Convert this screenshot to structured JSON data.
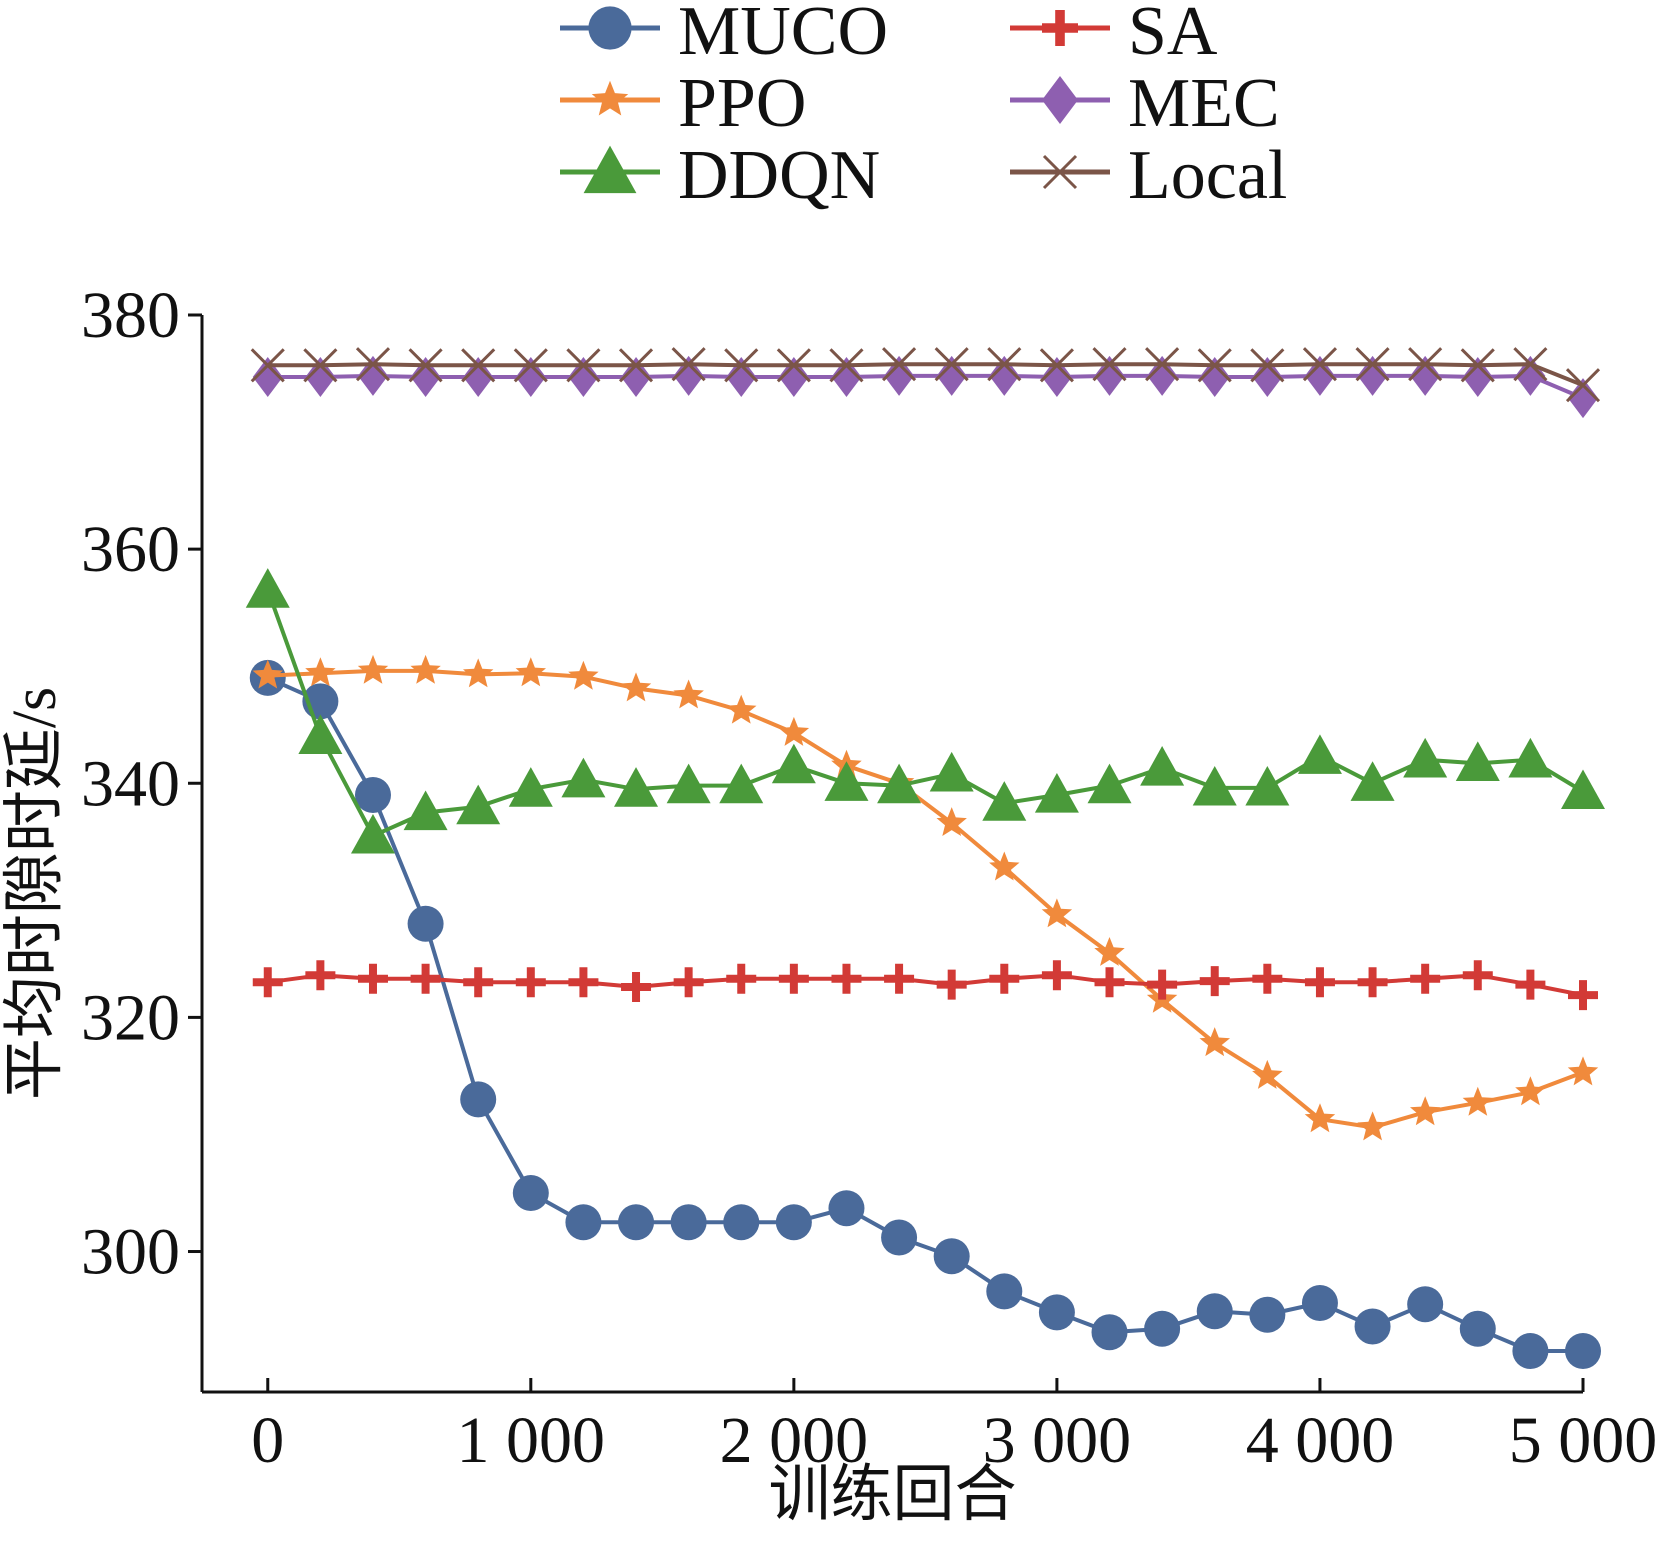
{
  "chart_data": {
    "type": "line",
    "title": "",
    "xlabel": "训练回合",
    "ylabel": "平均时隙时延/s",
    "xlim": [
      -250,
      5000
    ],
    "ylim": [
      288,
      380
    ],
    "x_ticks": [
      0,
      1000,
      2000,
      3000,
      4000,
      5000
    ],
    "x_tick_labels": [
      "0",
      "1 000",
      "2 000",
      "3 000",
      "4 000",
      "5 000"
    ],
    "y_ticks": [
      300,
      320,
      340,
      360,
      380
    ],
    "y_tick_labels": [
      "300",
      "320",
      "340",
      "360",
      "380"
    ],
    "grid": false,
    "legend_position": "top",
    "x": [
      0,
      200,
      400,
      600,
      800,
      1000,
      1200,
      1400,
      1600,
      1800,
      2000,
      2200,
      2400,
      2600,
      2800,
      3000,
      3200,
      3400,
      3600,
      3800,
      4000,
      4200,
      4400,
      4600,
      4800,
      5000
    ],
    "series": [
      {
        "name": "MUCO",
        "color": "#4a6a9a",
        "marker": "circle",
        "values": [
          349,
          347,
          339,
          328,
          313,
          305,
          302.5,
          302.5,
          302.5,
          302.5,
          302.5,
          303.7,
          301.2,
          299.6,
          296.6,
          294.8,
          293.1,
          293.4,
          294.9,
          294.6,
          295.6,
          293.6,
          295.5,
          293.4,
          291.5,
          291.5
        ]
      },
      {
        "name": "PPO",
        "color": "#f08a3c",
        "marker": "star",
        "values": [
          349.2,
          349.4,
          349.6,
          349.6,
          349.3,
          349.4,
          349.1,
          348.1,
          347.5,
          346.2,
          344.3,
          341.5,
          340.0,
          336.6,
          332.8,
          328.8,
          325.5,
          321.5,
          317.8,
          315.0,
          311.3,
          310.6,
          311.9,
          312.7,
          313.6,
          315.3
        ]
      },
      {
        "name": "DDQN",
        "color": "#4a9a3a",
        "marker": "triangle",
        "values": [
          356.5,
          344,
          335.5,
          337.5,
          338,
          339.5,
          340.3,
          339.5,
          339.8,
          339.8,
          341.5,
          340.0,
          339.8,
          340.8,
          338.3,
          339.0,
          339.8,
          341.3,
          339.6,
          339.6,
          342.3,
          340.0,
          342.0,
          341.7,
          342.0,
          339.3
        ]
      },
      {
        "name": "SA",
        "color": "#d23a36",
        "marker": "plus",
        "values": [
          323,
          323.6,
          323.3,
          323.3,
          323,
          323,
          323,
          322.6,
          323,
          323.3,
          323.3,
          323.3,
          323.3,
          322.8,
          323.3,
          323.6,
          323.0,
          322.8,
          323.1,
          323.3,
          323.0,
          323.0,
          323.3,
          323.6,
          322.8,
          321.9
        ]
      },
      {
        "name": "MEC",
        "color": "#8e5fb0",
        "marker": "diamond",
        "values": [
          374.7,
          374.7,
          374.8,
          374.7,
          374.7,
          374.7,
          374.7,
          374.7,
          374.8,
          374.7,
          374.7,
          374.7,
          374.8,
          374.8,
          374.8,
          374.7,
          374.8,
          374.8,
          374.7,
          374.7,
          374.8,
          374.8,
          374.8,
          374.7,
          374.8,
          372.9
        ]
      },
      {
        "name": "Local",
        "color": "#7b5548",
        "marker": "x",
        "values": [
          375.7,
          375.7,
          375.8,
          375.7,
          375.7,
          375.7,
          375.7,
          375.7,
          375.8,
          375.7,
          375.7,
          375.7,
          375.8,
          375.8,
          375.8,
          375.7,
          375.8,
          375.8,
          375.7,
          375.7,
          375.8,
          375.8,
          375.8,
          375.7,
          375.8,
          374.0
        ]
      }
    ]
  }
}
